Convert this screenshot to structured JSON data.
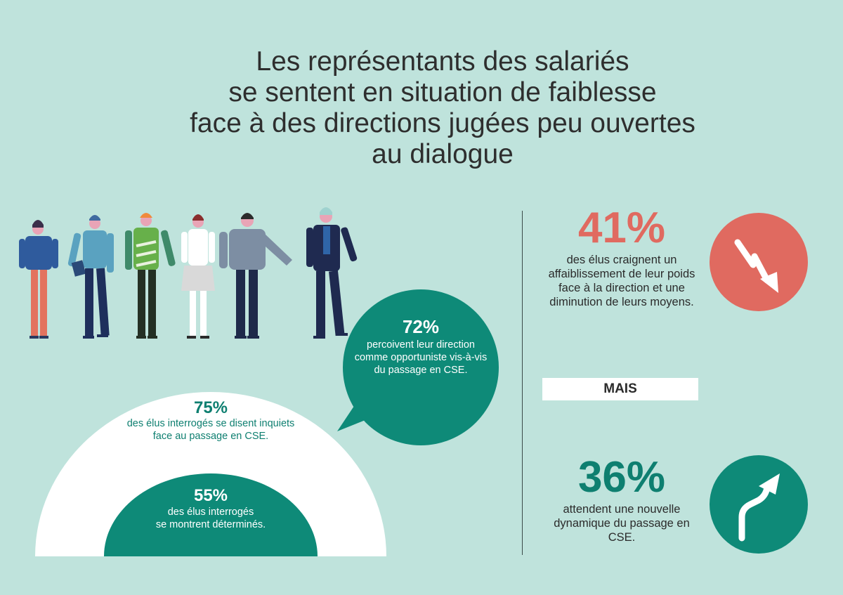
{
  "title": {
    "line1": "Les représentants des salariés",
    "line2": "se sentent en situation de faiblesse",
    "line3": "face à des directions jugées peu ouvertes",
    "line4": "au dialogue"
  },
  "bubble": {
    "pct": "72%",
    "text": "percoivent leur direction comme opportuniste vis-à-vis du passage en CSE."
  },
  "arch_outer": {
    "pct": "75%",
    "text_line1": "des élus interrogés se disent inquiets",
    "text_line2": "face au passage en CSE."
  },
  "arch_inner": {
    "pct": "55%",
    "text_line1": "des élus interrogés",
    "text_line2": "se montrent déterminés."
  },
  "stat_down": {
    "pct": "41%",
    "text": "des élus craignent un affaiblissement de leur poids face à la direction et une diminution de leurs moyens.",
    "icon": "trend-down-arrow-icon"
  },
  "separator": {
    "label": "MAIS"
  },
  "stat_up": {
    "pct": "36%",
    "text": "attendent une nouvelle dynamique du passage en CSE.",
    "icon": "trend-up-arrow-icon"
  },
  "colors": {
    "background": "#bfe3dc",
    "teal": "#0e8a78",
    "coral": "#e06a60",
    "white": "#ffffff"
  }
}
